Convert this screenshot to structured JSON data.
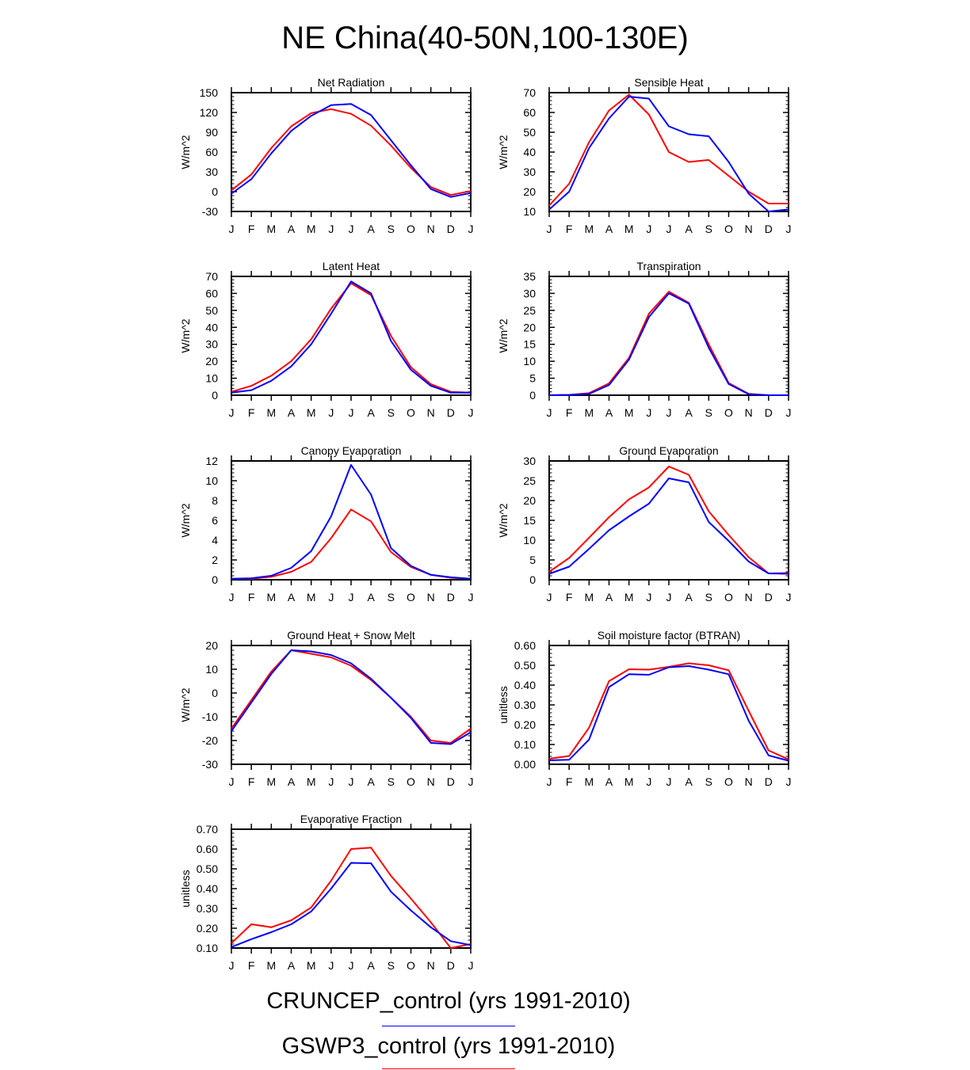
{
  "title": "NE China(40-50N,100-130E)",
  "colors": {
    "cruncep": "#0000ff",
    "gswp3": "#ff0000"
  },
  "legend": [
    {
      "label": "CRUNCEP_control (yrs 1991-2010)",
      "color": "#0000ff"
    },
    {
      "label": "GSWP3_control (yrs 1991-2010)",
      "color": "#ff0000"
    }
  ],
  "chart_data": [
    {
      "type": "line",
      "title": "Net Radiation",
      "ylabel": "W/m^2",
      "categories": [
        "J",
        "F",
        "M",
        "A",
        "M",
        "J",
        "J",
        "A",
        "S",
        "O",
        "N",
        "D",
        "J"
      ],
      "ylim": [
        -30,
        150
      ],
      "yticks": [
        -30,
        0,
        30,
        60,
        90,
        120,
        150
      ],
      "ytick_labels": [
        "-30",
        "0",
        "30",
        "60",
        "90",
        "120",
        "150"
      ],
      "series": [
        {
          "name": "CRUNCEP_control",
          "color": "#0000ff",
          "values": [
            -3,
            19,
            58,
            92,
            115,
            131,
            133,
            116,
            78,
            40,
            4,
            -8,
            -2
          ]
        },
        {
          "name": "GSWP3_control",
          "color": "#ff0000",
          "values": [
            2,
            26,
            66,
            99,
            119,
            125,
            118,
            100,
            70,
            36,
            7,
            -5,
            1
          ]
        }
      ]
    },
    {
      "type": "line",
      "title": "Sensible Heat",
      "ylabel": "W/m^2",
      "categories": [
        "J",
        "F",
        "M",
        "A",
        "M",
        "J",
        "J",
        "A",
        "S",
        "O",
        "N",
        "D",
        "J"
      ],
      "ylim": [
        10,
        70
      ],
      "yticks": [
        10,
        20,
        30,
        40,
        50,
        60,
        70
      ],
      "ytick_labels": [
        "10",
        "20",
        "30",
        "40",
        "50",
        "60",
        "70"
      ],
      "series": [
        {
          "name": "CRUNCEP_control",
          "color": "#0000ff",
          "values": [
            11,
            20,
            42,
            57,
            68,
            67,
            53,
            49,
            48,
            35,
            19,
            10,
            11
          ]
        },
        {
          "name": "GSWP3_control",
          "color": "#ff0000",
          "values": [
            13,
            24,
            45,
            61,
            69,
            59,
            40,
            35,
            36,
            28,
            20,
            14,
            14
          ]
        }
      ]
    },
    {
      "type": "line",
      "title": "Latent Heat",
      "ylabel": "W/m^2",
      "categories": [
        "J",
        "F",
        "M",
        "A",
        "M",
        "J",
        "J",
        "A",
        "S",
        "O",
        "N",
        "D",
        "J"
      ],
      "ylim": [
        0,
        70
      ],
      "yticks": [
        0,
        10,
        20,
        30,
        40,
        50,
        60,
        70
      ],
      "ytick_labels": [
        "0",
        "10",
        "20",
        "30",
        "40",
        "50",
        "60",
        "70"
      ],
      "series": [
        {
          "name": "CRUNCEP_control",
          "color": "#0000ff",
          "values": [
            1.5,
            3,
            8.5,
            17,
            30,
            48,
            67,
            60,
            32,
            15,
            5.5,
            1.5,
            1.5
          ]
        },
        {
          "name": "GSWP3_control",
          "color": "#ff0000",
          "values": [
            2,
            5.5,
            11.5,
            20,
            33,
            51,
            66,
            59,
            35,
            16.5,
            6.5,
            2,
            1.5
          ]
        }
      ]
    },
    {
      "type": "line",
      "title": "Transpiration",
      "ylabel": "W/m^2",
      "categories": [
        "J",
        "F",
        "M",
        "A",
        "M",
        "J",
        "J",
        "A",
        "S",
        "O",
        "N",
        "D",
        "J"
      ],
      "ylim": [
        0,
        35
      ],
      "yticks": [
        0,
        5,
        10,
        15,
        20,
        25,
        30,
        35
      ],
      "ytick_labels": [
        "0",
        "5",
        "10",
        "15",
        "20",
        "25",
        "30",
        "35"
      ],
      "series": [
        {
          "name": "CRUNCEP_control",
          "color": "#0000ff",
          "values": [
            0,
            0.1,
            0.4,
            3,
            10.5,
            23,
            30,
            27,
            14,
            3.3,
            0.3,
            0,
            0
          ]
        },
        {
          "name": "GSWP3_control",
          "color": "#ff0000",
          "values": [
            0,
            0.1,
            0.6,
            3.5,
            11,
            24,
            30.5,
            27.2,
            15,
            3.6,
            0.4,
            0,
            0
          ]
        }
      ]
    },
    {
      "type": "line",
      "title": "Canopy Evaporation",
      "ylabel": "W/m^2",
      "categories": [
        "J",
        "F",
        "M",
        "A",
        "M",
        "J",
        "J",
        "A",
        "S",
        "O",
        "N",
        "D",
        "J"
      ],
      "ylim": [
        0,
        12
      ],
      "yticks": [
        0,
        2,
        4,
        6,
        8,
        10,
        12
      ],
      "ytick_labels": [
        "0",
        "2",
        "4",
        "6",
        "8",
        "10",
        "12"
      ],
      "series": [
        {
          "name": "CRUNCEP_control",
          "color": "#0000ff",
          "values": [
            0.1,
            0.15,
            0.4,
            1.2,
            2.9,
            6.4,
            11.6,
            8.6,
            3.2,
            1.4,
            0.5,
            0.25,
            0.1
          ]
        },
        {
          "name": "GSWP3_control",
          "color": "#ff0000",
          "values": [
            0.1,
            0.1,
            0.3,
            0.8,
            1.8,
            4.2,
            7.1,
            5.9,
            2.8,
            1.3,
            0.5,
            0.2,
            0.1
          ]
        }
      ]
    },
    {
      "type": "line",
      "title": "Ground Evaporation",
      "ylabel": "W/m^2",
      "categories": [
        "J",
        "F",
        "M",
        "A",
        "M",
        "J",
        "J",
        "A",
        "S",
        "O",
        "N",
        "D",
        "J"
      ],
      "ylim": [
        0,
        30
      ],
      "yticks": [
        0,
        5,
        10,
        15,
        20,
        25,
        30
      ],
      "ytick_labels": [
        "0",
        "5",
        "10",
        "15",
        "20",
        "25",
        "30"
      ],
      "series": [
        {
          "name": "CRUNCEP_control",
          "color": "#0000ff",
          "values": [
            1.5,
            3.3,
            7.8,
            12.5,
            16,
            19.2,
            25.6,
            24.6,
            14.6,
            9.8,
            4.6,
            1.6,
            1.5
          ]
        },
        {
          "name": "GSWP3_control",
          "color": "#ff0000",
          "values": [
            2,
            5.5,
            10.6,
            15.8,
            20.3,
            23.3,
            28.6,
            26.5,
            17.3,
            11.3,
            5.7,
            1.6,
            1.7
          ]
        }
      ]
    },
    {
      "type": "line",
      "title": "Ground Heat + Snow Melt",
      "ylabel": "W/m^2",
      "categories": [
        "J",
        "F",
        "M",
        "A",
        "M",
        "J",
        "J",
        "A",
        "S",
        "O",
        "N",
        "D",
        "J"
      ],
      "ylim": [
        -30,
        20
      ],
      "yticks": [
        -30,
        -20,
        -10,
        0,
        10,
        20
      ],
      "ytick_labels": [
        "-30",
        "-20",
        "-10",
        "0",
        "10",
        "20"
      ],
      "series": [
        {
          "name": "CRUNCEP_control",
          "color": "#0000ff",
          "values": [
            -16,
            -4,
            8,
            18,
            17.5,
            16,
            12.5,
            6,
            -2,
            -10.5,
            -21,
            -21.5,
            -16.5
          ]
        },
        {
          "name": "GSWP3_control",
          "color": "#ff0000",
          "values": [
            -15,
            -3,
            9,
            18,
            16.5,
            15,
            11.5,
            5.5,
            -2,
            -10,
            -20,
            -21,
            -15
          ]
        }
      ]
    },
    {
      "type": "line",
      "title": "Soil moisture factor (BTRAN)",
      "ylabel": "unitless",
      "categories": [
        "J",
        "F",
        "M",
        "A",
        "M",
        "J",
        "J",
        "A",
        "S",
        "O",
        "N",
        "D",
        "J"
      ],
      "ylim": [
        0,
        0.6
      ],
      "yticks": [
        0,
        0.1,
        0.2,
        0.3,
        0.4,
        0.5,
        0.6
      ],
      "ytick_labels": [
        "0.00",
        "0.10",
        "0.20",
        "0.30",
        "0.40",
        "0.50",
        "0.60"
      ],
      "series": [
        {
          "name": "CRUNCEP_control",
          "color": "#0000ff",
          "values": [
            0.02,
            0.023,
            0.125,
            0.39,
            0.455,
            0.452,
            0.49,
            0.496,
            0.478,
            0.455,
            0.22,
            0.045,
            0.018
          ]
        },
        {
          "name": "GSWP3_control",
          "color": "#ff0000",
          "values": [
            0.028,
            0.042,
            0.185,
            0.42,
            0.48,
            0.478,
            0.492,
            0.51,
            0.5,
            0.475,
            0.27,
            0.07,
            0.025
          ]
        }
      ]
    },
    {
      "type": "line",
      "title": "Evaporative Fraction",
      "ylabel": "unitless",
      "categories": [
        "J",
        "F",
        "M",
        "A",
        "M",
        "J",
        "J",
        "A",
        "S",
        "O",
        "N",
        "D",
        "J"
      ],
      "ylim": [
        0.1,
        0.7
      ],
      "yticks": [
        0.1,
        0.2,
        0.3,
        0.4,
        0.5,
        0.6,
        0.7
      ],
      "ytick_labels": [
        "0.10",
        "0.20",
        "0.30",
        "0.40",
        "0.50",
        "0.60",
        "0.70"
      ],
      "series": [
        {
          "name": "CRUNCEP_control",
          "color": "#0000ff",
          "values": [
            0.105,
            0.145,
            0.18,
            0.22,
            0.285,
            0.4,
            0.53,
            0.528,
            0.385,
            0.29,
            0.205,
            0.135,
            0.115
          ]
        },
        {
          "name": "GSWP3_control",
          "color": "#ff0000",
          "values": [
            0.125,
            0.22,
            0.205,
            0.24,
            0.305,
            0.44,
            0.6,
            0.607,
            0.465,
            0.35,
            0.23,
            0.1,
            0.12
          ]
        }
      ]
    }
  ]
}
